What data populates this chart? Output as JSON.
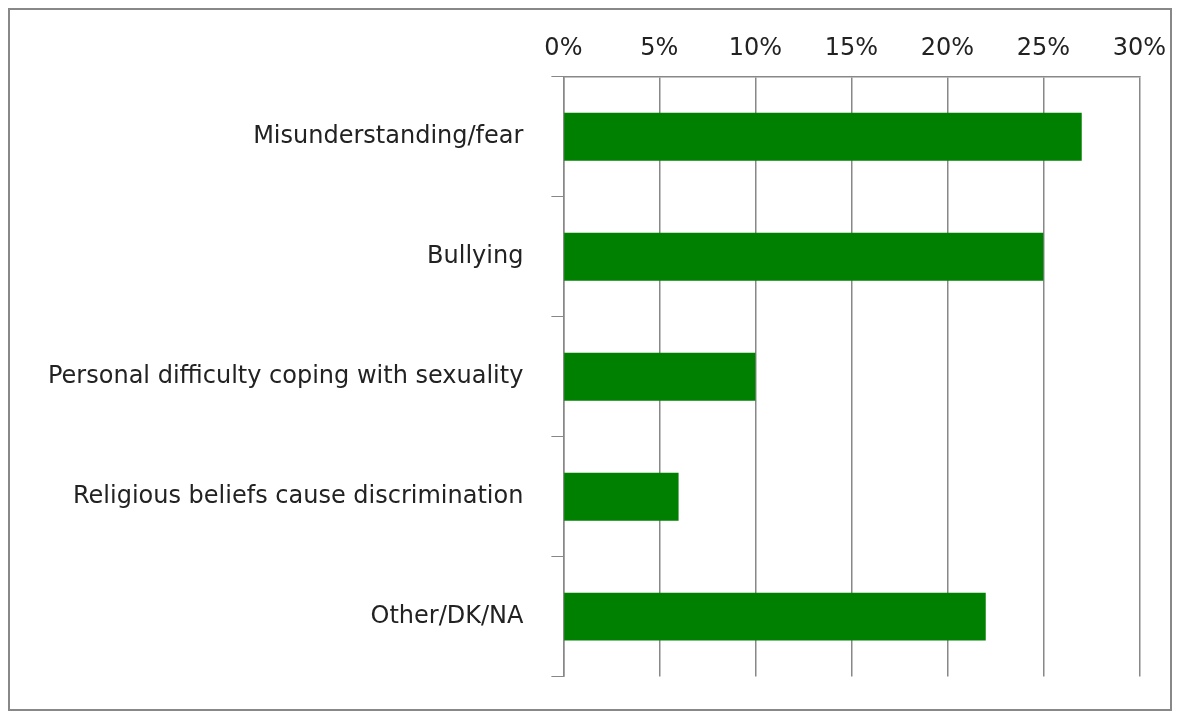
{
  "chart_data": {
    "type": "bar",
    "orientation": "horizontal",
    "categories": [
      "Misunderstanding/fear",
      "Bullying",
      "Personal difficulty coping with sexuality",
      "Religious beliefs cause discrimination",
      "Other/DK/NA"
    ],
    "values": [
      27,
      25,
      10,
      6,
      22
    ],
    "color": "#008000",
    "xlim": [
      0,
      30
    ],
    "xticks": [
      {
        "value": 0,
        "label": "0%"
      },
      {
        "value": 5,
        "label": "5%"
      },
      {
        "value": 10,
        "label": "10%"
      },
      {
        "value": 15,
        "label": "15%"
      },
      {
        "value": 20,
        "label": "20%"
      },
      {
        "value": 25,
        "label": "25%"
      },
      {
        "value": 30,
        "label": "30%"
      }
    ],
    "grid": "x",
    "legend": false
  }
}
